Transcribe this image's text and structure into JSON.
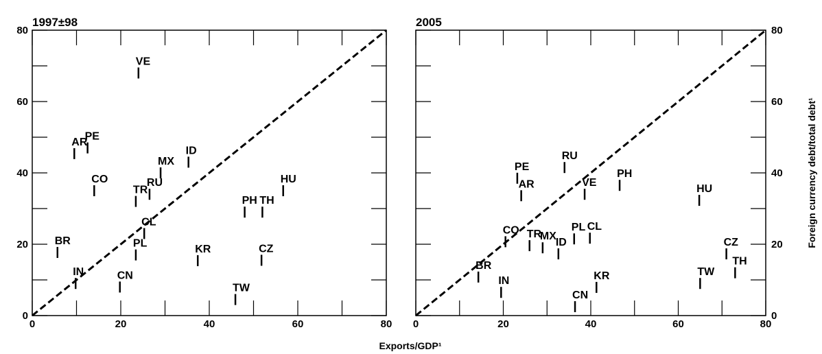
{
  "chart_data": [
    {
      "type": "scatter",
      "title": "1997±98",
      "ytick_side": "left",
      "labels": [
        "VE",
        "AR",
        "PE",
        "CO",
        "MX",
        "ID",
        "TR",
        "RU",
        "CL",
        "PL",
        "BR",
        "IN",
        "CN",
        "KR",
        "CZ",
        "TW",
        "PH",
        "TH",
        "HU"
      ],
      "x": [
        24,
        9.5,
        12.5,
        14,
        29,
        35.3,
        23.4,
        26.5,
        25.3,
        23.4,
        5.7,
        9.8,
        19.8,
        37.4,
        51.8,
        45.9,
        48,
        52,
        56.7
      ],
      "y": [
        68,
        45.4,
        47,
        35,
        40,
        43,
        32,
        34,
        23,
        17,
        17.7,
        9,
        8,
        15.4,
        15.5,
        4.5,
        29,
        29,
        35
      ],
      "xlim": [
        0,
        80
      ],
      "ylim": [
        0,
        80
      ],
      "xticks": [
        0,
        20,
        40,
        60,
        80
      ],
      "yticks": [
        0,
        20,
        40,
        60,
        80
      ],
      "minor_ticks": [
        10,
        30,
        50,
        70
      ],
      "diagonal": true
    },
    {
      "type": "scatter",
      "title": "2005",
      "ytick_side": "right",
      "labels": [
        "PE",
        "AR",
        "RU",
        "VE",
        "PH",
        "HU",
        "CO",
        "TR",
        "MX",
        "ID",
        "PL",
        "CL",
        "BR",
        "IN",
        "CN",
        "KR",
        "TW",
        "CZ",
        "TH"
      ],
      "x": [
        23.2,
        24.1,
        34,
        38.6,
        46.6,
        64.8,
        20.5,
        26,
        29,
        32.6,
        36.2,
        39.8,
        14.3,
        19.5,
        36.4,
        41.3,
        65,
        71,
        73
      ],
      "y": [
        38.5,
        33.6,
        41.5,
        34,
        36.5,
        32.3,
        20.7,
        19.6,
        19,
        17.3,
        21.5,
        21.7,
        10.8,
        6.5,
        2.5,
        7.9,
        9,
        17.3,
        12
      ],
      "xlim": [
        0,
        80
      ],
      "ylim": [
        0,
        80
      ],
      "xticks": [
        0,
        20,
        40,
        60,
        80
      ],
      "yticks": [
        0,
        20,
        40,
        60,
        80
      ],
      "minor_ticks": [
        10,
        30,
        50,
        70
      ],
      "diagonal": true
    }
  ],
  "x_label": "Exports/GDP¹",
  "y_label": "Foreign currency debt/total debt¹"
}
